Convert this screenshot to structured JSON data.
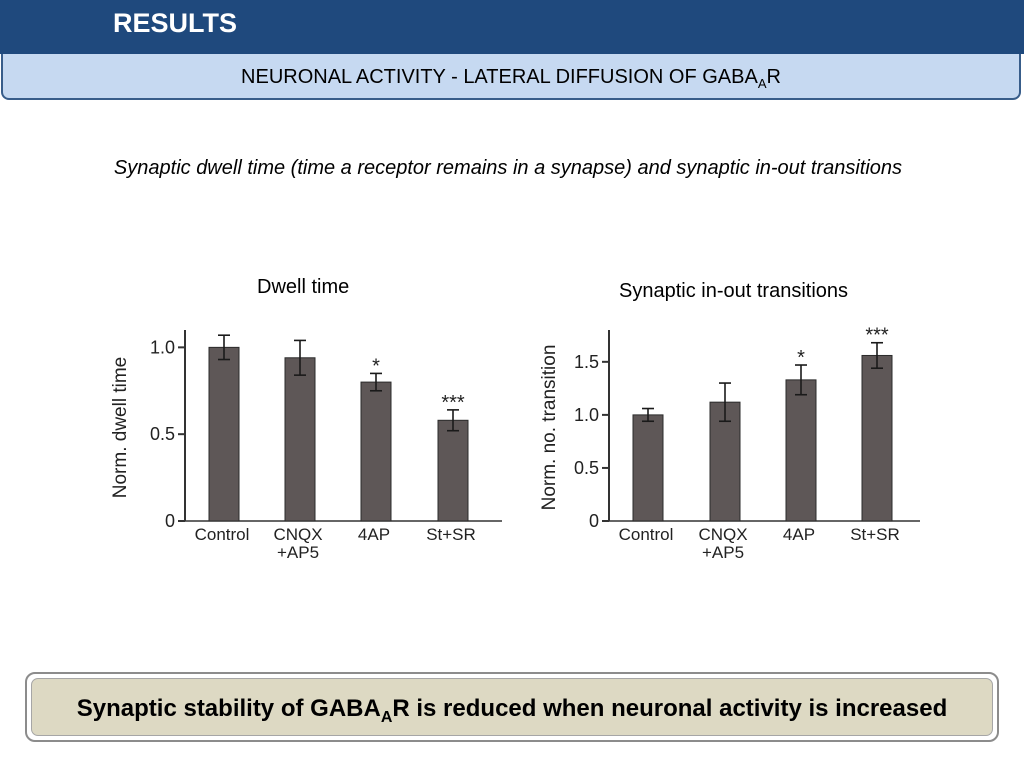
{
  "header": {
    "title": "RESULTS",
    "subtitle_prefix": "NEURONAL ACTIVITY - LATERAL DIFFUSION OF GABA",
    "subtitle_sub": "A",
    "subtitle_suffix": "R"
  },
  "caption": "Synaptic dwell time (time a receptor remains in a synapse) and synaptic in-out transitions",
  "conclusion": {
    "prefix": "Synaptic stability of GABA",
    "sub": "A",
    "suffix": "R is reduced when neuronal activity is increased"
  },
  "chart_data": [
    {
      "type": "bar",
      "title": "Dwell time",
      "ylabel": "Norm. dwell time",
      "xlabel": "",
      "categories": [
        "Control",
        "CNQX +AP5",
        "4AP",
        "St+SR"
      ],
      "category_lines": [
        [
          "Control"
        ],
        [
          "CNQX",
          "+AP5"
        ],
        [
          "4AP"
        ],
        [
          "St+SR"
        ]
      ],
      "values": [
        1.0,
        0.94,
        0.8,
        0.58
      ],
      "errors": [
        0.07,
        0.1,
        0.05,
        0.06
      ],
      "significance": [
        "",
        "",
        "*",
        "***"
      ],
      "ylim": [
        0,
        1.1
      ],
      "yticks": [
        0,
        0.5,
        1.0
      ],
      "ytick_labels": [
        "0",
        "0.5",
        "1.0"
      ],
      "grid": false,
      "bar_color": "#5e5757"
    },
    {
      "type": "bar",
      "title": "Synaptic in-out transitions",
      "ylabel": "Norm. no. transition",
      "xlabel": "",
      "categories": [
        "Control",
        "CNQX +AP5",
        "4AP",
        "St+SR"
      ],
      "category_lines": [
        [
          "Control"
        ],
        [
          "CNQX",
          "+AP5"
        ],
        [
          "4AP"
        ],
        [
          "St+SR"
        ]
      ],
      "values": [
        1.0,
        1.12,
        1.33,
        1.56
      ],
      "errors": [
        0.06,
        0.18,
        0.14,
        0.12
      ],
      "significance": [
        "",
        "",
        "*",
        "***"
      ],
      "ylim": [
        0,
        1.8
      ],
      "yticks": [
        0,
        0.5,
        1.0,
        1.5
      ],
      "ytick_labels": [
        "0",
        "0.5",
        "1.0",
        "1.5"
      ],
      "grid": false,
      "bar_color": "#5e5757"
    }
  ]
}
